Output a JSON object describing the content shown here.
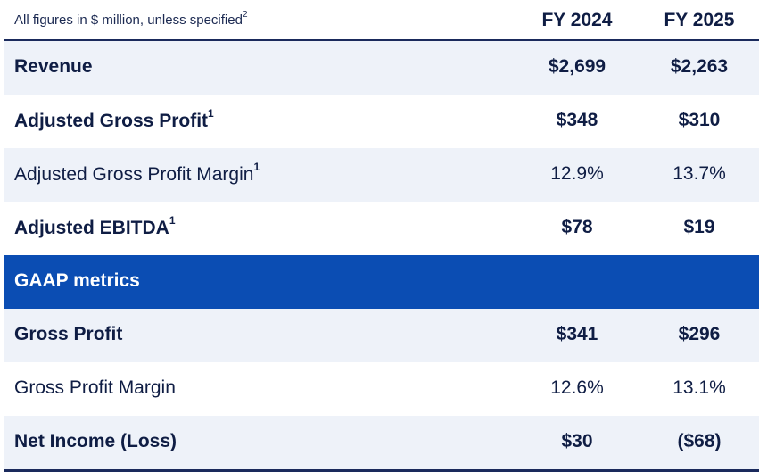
{
  "header": {
    "caption": "All figures in $ million, unless specified",
    "caption_sup": "2",
    "col1": "FY 2024",
    "col2": "FY 2025"
  },
  "rows": [
    {
      "label": "Revenue",
      "sup": "",
      "v1": "$2,699",
      "v2": "$2,263"
    },
    {
      "label": "Adjusted Gross Profit",
      "sup": "1",
      "v1": "$348",
      "v2": "$310"
    },
    {
      "label": "Adjusted Gross Profit Margin",
      "sup": "1",
      "v1": "12.9%",
      "v2": "13.7%"
    },
    {
      "label": "Adjusted EBITDA",
      "sup": "1",
      "v1": "$78",
      "v2": "$19"
    },
    {
      "label": "GAAP metrics"
    },
    {
      "label": "Gross Profit",
      "v1": "$341",
      "v2": "$296"
    },
    {
      "label": "Gross Profit Margin",
      "v1": "12.6%",
      "v2": "13.1%"
    },
    {
      "label": "Net Income (Loss)",
      "v1": "$30",
      "v2": "($68)"
    }
  ],
  "colors": {
    "text": "#0f1d44",
    "shaded_row": "#eef2f9",
    "section_band": "#0b4db3",
    "rule": "#1a2a5c"
  }
}
